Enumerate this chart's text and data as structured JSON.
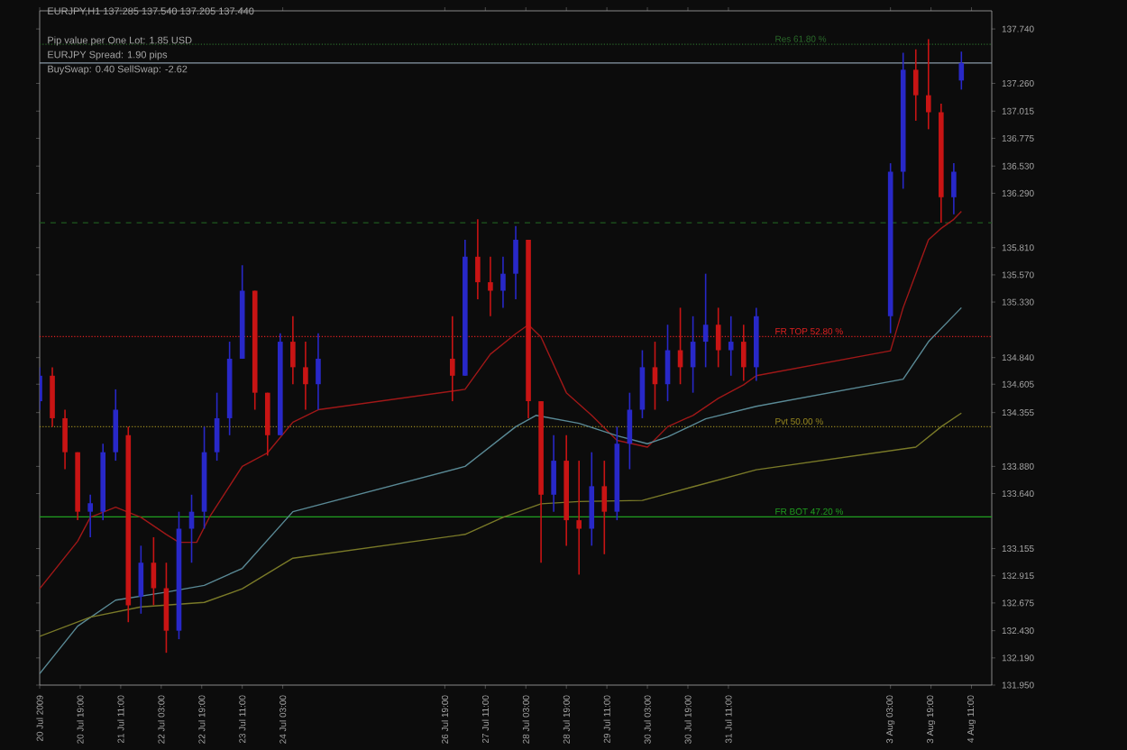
{
  "chart_data": {
    "type": "candlestick",
    "title": "EURJPY,H1  137.285 137.540 137.205 137.440",
    "annotations": [
      "Pip value per One Lot: 1.85 USD",
      "EURJPY Spread: 1.90 pips",
      "BuySwap: 0.40   SellSwap: -2.62"
    ],
    "x": [
      "2009-07-20T03:00",
      "2009-07-20T08:00",
      "2009-07-20T13:00",
      "2009-07-20T18:00",
      "2009-07-20T23:00",
      "2009-07-21T04:00",
      "2009-07-21T09:00",
      "2009-07-21T14:00",
      "2009-07-21T19:00",
      "2009-07-22T00:00",
      "2009-07-22T05:00",
      "2009-07-22T10:00",
      "2009-07-22T15:00",
      "2009-07-22T20:00",
      "2009-07-23T01:00",
      "2009-07-23T06:00",
      "2009-07-23T11:00",
      "2009-07-23T16:00",
      "2009-07-23T21:00",
      "2009-07-24T02:00",
      "2009-07-24T07:00",
      "2009-07-24T12:00",
      "2009-07-24T17:00",
      "2009-07-26T22:00",
      "2009-07-27T03:00",
      "2009-07-27T08:00",
      "2009-07-27T13:00",
      "2009-07-27T18:00",
      "2009-07-27T23:00",
      "2009-07-28T04:00",
      "2009-07-28T09:00",
      "2009-07-28T14:00",
      "2009-07-28T19:00",
      "2009-07-29T00:00",
      "2009-07-29T05:00",
      "2009-07-29T10:00",
      "2009-07-29T15:00",
      "2009-07-29T20:00",
      "2009-07-30T01:00",
      "2009-07-30T06:00",
      "2009-07-30T11:00",
      "2009-07-30T16:00",
      "2009-07-30T21:00",
      "2009-07-31T02:00",
      "2009-07-31T07:00",
      "2009-07-31T12:00",
      "2009-07-31T17:00",
      "2009-07-31T22:00",
      "2009-08-03T03:00",
      "2009-08-03T08:00",
      "2009-08-03T13:00",
      "2009-08-03T18:00",
      "2009-08-03T23:00",
      "2009-08-04T04:00",
      "2009-08-04T07:00"
    ],
    "ohlc": [
      [
        134.455,
        134.755,
        134.38,
        134.68
      ],
      [
        134.68,
        134.755,
        134.23,
        134.305
      ],
      [
        134.305,
        134.38,
        133.855,
        134.005
      ],
      [
        134.005,
        134.005,
        133.405,
        133.48
      ],
      [
        133.48,
        133.63,
        133.255,
        133.555
      ],
      [
        133.48,
        134.08,
        133.405,
        134.005
      ],
      [
        134.005,
        134.56,
        133.93,
        134.38
      ],
      [
        134.155,
        134.23,
        132.505,
        132.655
      ],
      [
        132.73,
        133.18,
        132.58,
        133.03
      ],
      [
        133.03,
        133.255,
        132.655,
        132.805
      ],
      [
        132.805,
        133.03,
        132.235,
        132.43
      ],
      [
        132.43,
        133.48,
        132.355,
        133.33
      ],
      [
        133.33,
        133.63,
        133.03,
        133.48
      ],
      [
        133.48,
        134.23,
        133.33,
        134.005
      ],
      [
        134.005,
        134.53,
        133.93,
        134.305
      ],
      [
        134.305,
        134.98,
        134.155,
        134.83
      ],
      [
        134.83,
        135.655,
        134.83,
        135.43
      ],
      [
        135.43,
        135.43,
        134.38,
        134.53
      ],
      [
        134.53,
        134.53,
        133.975,
        134.155
      ],
      [
        134.155,
        135.055,
        134.155,
        134.98
      ],
      [
        134.98,
        135.205,
        134.605,
        134.755
      ],
      [
        134.755,
        134.98,
        134.38,
        134.605
      ],
      [
        134.605,
        135.055,
        134.38,
        134.83
      ],
      [
        134.83,
        135.205,
        134.455,
        134.68
      ],
      [
        134.68,
        135.88,
        134.68,
        135.73
      ],
      [
        135.73,
        136.06,
        135.355,
        135.505
      ],
      [
        135.505,
        135.73,
        135.205,
        135.43
      ],
      [
        135.43,
        135.73,
        135.28,
        135.58
      ],
      [
        135.58,
        136.0,
        135.355,
        135.88
      ],
      [
        135.88,
        135.88,
        134.305,
        134.455
      ],
      [
        134.455,
        134.455,
        133.03,
        133.63
      ],
      [
        133.63,
        134.155,
        133.48,
        133.93
      ],
      [
        133.93,
        134.155,
        133.18,
        133.405
      ],
      [
        133.405,
        133.93,
        132.925,
        133.33
      ],
      [
        133.33,
        134.005,
        133.18,
        133.705
      ],
      [
        133.705,
        133.93,
        133.105,
        133.48
      ],
      [
        133.48,
        134.23,
        133.405,
        134.08
      ],
      [
        134.08,
        134.53,
        133.855,
        134.38
      ],
      [
        134.38,
        134.905,
        134.305,
        134.755
      ],
      [
        134.755,
        134.98,
        134.38,
        134.605
      ],
      [
        134.605,
        135.13,
        134.455,
        134.905
      ],
      [
        134.905,
        135.28,
        134.605,
        134.755
      ],
      [
        134.755,
        135.205,
        134.53,
        134.98
      ],
      [
        134.98,
        135.58,
        134.755,
        135.13
      ],
      [
        135.13,
        135.28,
        134.755,
        134.905
      ],
      [
        134.905,
        135.205,
        134.68,
        134.98
      ],
      [
        134.98,
        135.13,
        134.635,
        134.755
      ],
      [
        134.755,
        135.28,
        134.635,
        135.205
      ],
      [
        135.205,
        136.555,
        135.055,
        136.48
      ],
      [
        136.48,
        137.53,
        136.33,
        137.38
      ],
      [
        137.38,
        137.56,
        136.93,
        137.155
      ],
      [
        137.155,
        137.65,
        136.855,
        137.005
      ],
      [
        137.005,
        137.08,
        136.03,
        136.255
      ],
      [
        136.255,
        136.555,
        136.105,
        136.48
      ],
      [
        137.285,
        137.54,
        137.205,
        137.44
      ]
    ],
    "colors": [
      "#2828c8",
      "#c81414",
      "#c81414",
      "#c81414",
      "#2828c8",
      "#2828c8",
      "#2828c8",
      "#c81414",
      "#2828c8",
      "#c81414",
      "#c81414",
      "#2828c8",
      "#2828c8",
      "#2828c8",
      "#2828c8",
      "#2828c8",
      "#2828c8",
      "#c81414",
      "#c81414",
      "#2828c8",
      "#c81414",
      "#c81414",
      "#2828c8",
      "#c81414",
      "#2828c8",
      "#c81414",
      "#c81414",
      "#2828c8",
      "#2828c8",
      "#c81414",
      "#c81414",
      "#2828c8",
      "#c81414",
      "#c81414",
      "#2828c8",
      "#c81414",
      "#2828c8",
      "#2828c8",
      "#2828c8",
      "#c81414",
      "#2828c8",
      "#c81414",
      "#2828c8",
      "#2828c8",
      "#c81414",
      "#2828c8",
      "#c81414",
      "#2828c8",
      "#2828c8",
      "#2828c8",
      "#c81414",
      "#c81414",
      "#c81414",
      "#2828c8",
      "#2828c8"
    ],
    "series": [
      {
        "type": "line",
        "color": "#a01818",
        "x": [
          "2009-07-20T03:00",
          "2009-07-20T18:00",
          "2009-07-20T23:00",
          "2009-07-21T09:00",
          "2009-07-21T19:00",
          "2009-07-22T05:00",
          "2009-07-22T10:00",
          "2009-07-22T17:00",
          "2009-07-22T22:00",
          "2009-07-23T11:00",
          "2009-07-23T21:00",
          "2009-07-24T07:00",
          "2009-07-24T17:00",
          "2009-07-27T03:00",
          "2009-07-27T13:00",
          "2009-07-27T23:00",
          "2009-07-28T04:00",
          "2009-07-28T09:00",
          "2009-07-28T19:00",
          "2009-07-29T05:00",
          "2009-07-29T15:00",
          "2009-07-30T03:00",
          "2009-07-30T11:00",
          "2009-07-30T21:00",
          "2009-07-31T07:00",
          "2009-07-31T17:00",
          "2009-07-31T22:00",
          "2009-08-03T03:00",
          "2009-08-03T08:00",
          "2009-08-03T13:00",
          "2009-08-03T18:00",
          "2009-08-03T23:00",
          "2009-08-04T04:00",
          "2009-08-04T07:00"
        ],
        "values": [
          132.8,
          133.22,
          133.43,
          133.52,
          133.43,
          133.28,
          133.21,
          133.21,
          133.43,
          133.88,
          134.0,
          134.27,
          134.38,
          134.56,
          134.87,
          135.05,
          135.13,
          135.02,
          134.53,
          134.33,
          134.11,
          134.05,
          134.23,
          134.33,
          134.48,
          134.6,
          134.68,
          134.9,
          135.28,
          135.58,
          135.88,
          135.98,
          136.06,
          136.13
        ]
      },
      {
        "type": "line",
        "color": "#5a8a96",
        "x": [
          "2009-07-20T03:00",
          "2009-07-20T18:00",
          "2009-07-21T09:00",
          "2009-07-22T05:00",
          "2009-07-22T20:00",
          "2009-07-23T11:00",
          "2009-07-24T07:00",
          "2009-07-27T03:00",
          "2009-07-27T23:00",
          "2009-07-28T07:00",
          "2009-07-29T00:00",
          "2009-07-29T15:00",
          "2009-07-30T03:00",
          "2009-07-30T11:00",
          "2009-07-31T02:00",
          "2009-07-31T22:00",
          "2009-08-03T08:00",
          "2009-08-03T18:00",
          "2009-08-04T07:00"
        ],
        "values": [
          132.05,
          132.47,
          132.7,
          132.77,
          132.83,
          132.98,
          133.48,
          133.88,
          134.23,
          134.33,
          134.26,
          134.15,
          134.08,
          134.14,
          134.3,
          134.41,
          134.65,
          134.98,
          135.28
        ]
      },
      {
        "type": "line",
        "color": "#7a7a28",
        "x": [
          "2009-07-20T03:00",
          "2009-07-20T23:00",
          "2009-07-21T19:00",
          "2009-07-22T20:00",
          "2009-07-23T11:00",
          "2009-07-24T07:00",
          "2009-07-27T03:00",
          "2009-07-27T18:00",
          "2009-07-28T09:00",
          "2009-07-29T00:00",
          "2009-07-30T01:00",
          "2009-07-30T21:00",
          "2009-07-31T22:00",
          "2009-08-03T13:00",
          "2009-08-03T23:00",
          "2009-08-04T07:00"
        ],
        "values": [
          132.38,
          132.55,
          132.64,
          132.68,
          132.8,
          133.07,
          133.28,
          133.43,
          133.55,
          133.57,
          133.58,
          133.7,
          133.85,
          134.05,
          134.23,
          134.35
        ]
      }
    ],
    "xlim": [
      "2009-07-20T03:00",
      "2009-08-04T19:00"
    ],
    "ylim": [
      131.95,
      137.9
    ],
    "xticks": [
      {
        "value": "2009-07-20T03:00",
        "label": "20 Jul 2009"
      },
      {
        "value": "2009-07-20T19:00",
        "label": "20 Jul 19:00"
      },
      {
        "value": "2009-07-21T11:00",
        "label": "21 Jul 11:00"
      },
      {
        "value": "2009-07-22T03:00",
        "label": "22 Jul 03:00"
      },
      {
        "value": "2009-07-22T19:00",
        "label": "22 Jul 19:00"
      },
      {
        "value": "2009-07-23T11:00",
        "label": "23 Jul 11:00"
      },
      {
        "value": "2009-07-24T03:00",
        "label": "24 Jul 03:00"
      },
      {
        "value": "2009-07-26T19:00",
        "label": "26 Jul 19:00"
      },
      {
        "value": "2009-07-27T11:00",
        "label": "27 Jul 11:00"
      },
      {
        "value": "2009-07-28T03:00",
        "label": "28 Jul 03:00"
      },
      {
        "value": "2009-07-28T19:00",
        "label": "28 Jul 19:00"
      },
      {
        "value": "2009-07-29T11:00",
        "label": "29 Jul 11:00"
      },
      {
        "value": "2009-07-30T03:00",
        "label": "30 Jul 03:00"
      },
      {
        "value": "2009-07-30T19:00",
        "label": "30 Jul 19:00"
      },
      {
        "value": "2009-07-31T11:00",
        "label": "31 Jul 11:00"
      },
      {
        "value": "2009-08-03T03:00",
        "label": "3 Aug 03:00"
      },
      {
        "value": "2009-08-03T19:00",
        "label": "3 Aug 19:00"
      },
      {
        "value": "2009-08-04T11:00",
        "label": "4 Aug 11:00"
      }
    ],
    "yticks": [
      {
        "value": 131.95,
        "label": "131.950"
      },
      {
        "value": 132.19,
        "label": "132.190"
      },
      {
        "value": 132.43,
        "label": "132.430"
      },
      {
        "value": 132.675,
        "label": "132.675"
      },
      {
        "value": 132.915,
        "label": "132.915"
      },
      {
        "value": 133.155,
        "label": "133.155"
      },
      {
        "value": 133.64,
        "label": "133.640"
      },
      {
        "value": 133.88,
        "label": "133.880"
      },
      {
        "value": 134.355,
        "label": "134.355"
      },
      {
        "value": 134.605,
        "label": "134.605"
      },
      {
        "value": 134.84,
        "label": "134.840"
      },
      {
        "value": 135.33,
        "label": "135.330"
      },
      {
        "value": 135.57,
        "label": "135.570"
      },
      {
        "value": 135.81,
        "label": "135.810"
      },
      {
        "value": 136.29,
        "label": "136.290"
      },
      {
        "value": 136.53,
        "label": "136.530"
      },
      {
        "value": 136.775,
        "label": "136.775"
      },
      {
        "value": 137.015,
        "label": "137.015"
      },
      {
        "value": 137.26,
        "label": "137.260"
      },
      {
        "value": 137.74,
        "label": "137.740"
      }
    ],
    "ref_lines": [
      {
        "axis": "y",
        "value": 137.605,
        "label": "Res 61.80 %",
        "color": "#2a6a2a",
        "line_style": "dotted"
      },
      {
        "axis": "y",
        "value": 137.44,
        "color": "#8a9aa8",
        "line_style": "solid"
      },
      {
        "axis": "y",
        "value": 136.03,
        "color": "#1e5a1e",
        "line_style": "dashed"
      },
      {
        "axis": "y",
        "value": 135.025,
        "label": "FR TOP 52.80 %",
        "color": "#e02020",
        "line_style": "dotted"
      },
      {
        "axis": "y",
        "value": 134.23,
        "label": "Pvt 50.00 %",
        "color": "#9a8a20",
        "line_style": "dotted"
      },
      {
        "axis": "y",
        "value": 133.435,
        "label": "FR BOT 47.20 %",
        "color": "#20a020",
        "line_style": "solid"
      }
    ]
  }
}
